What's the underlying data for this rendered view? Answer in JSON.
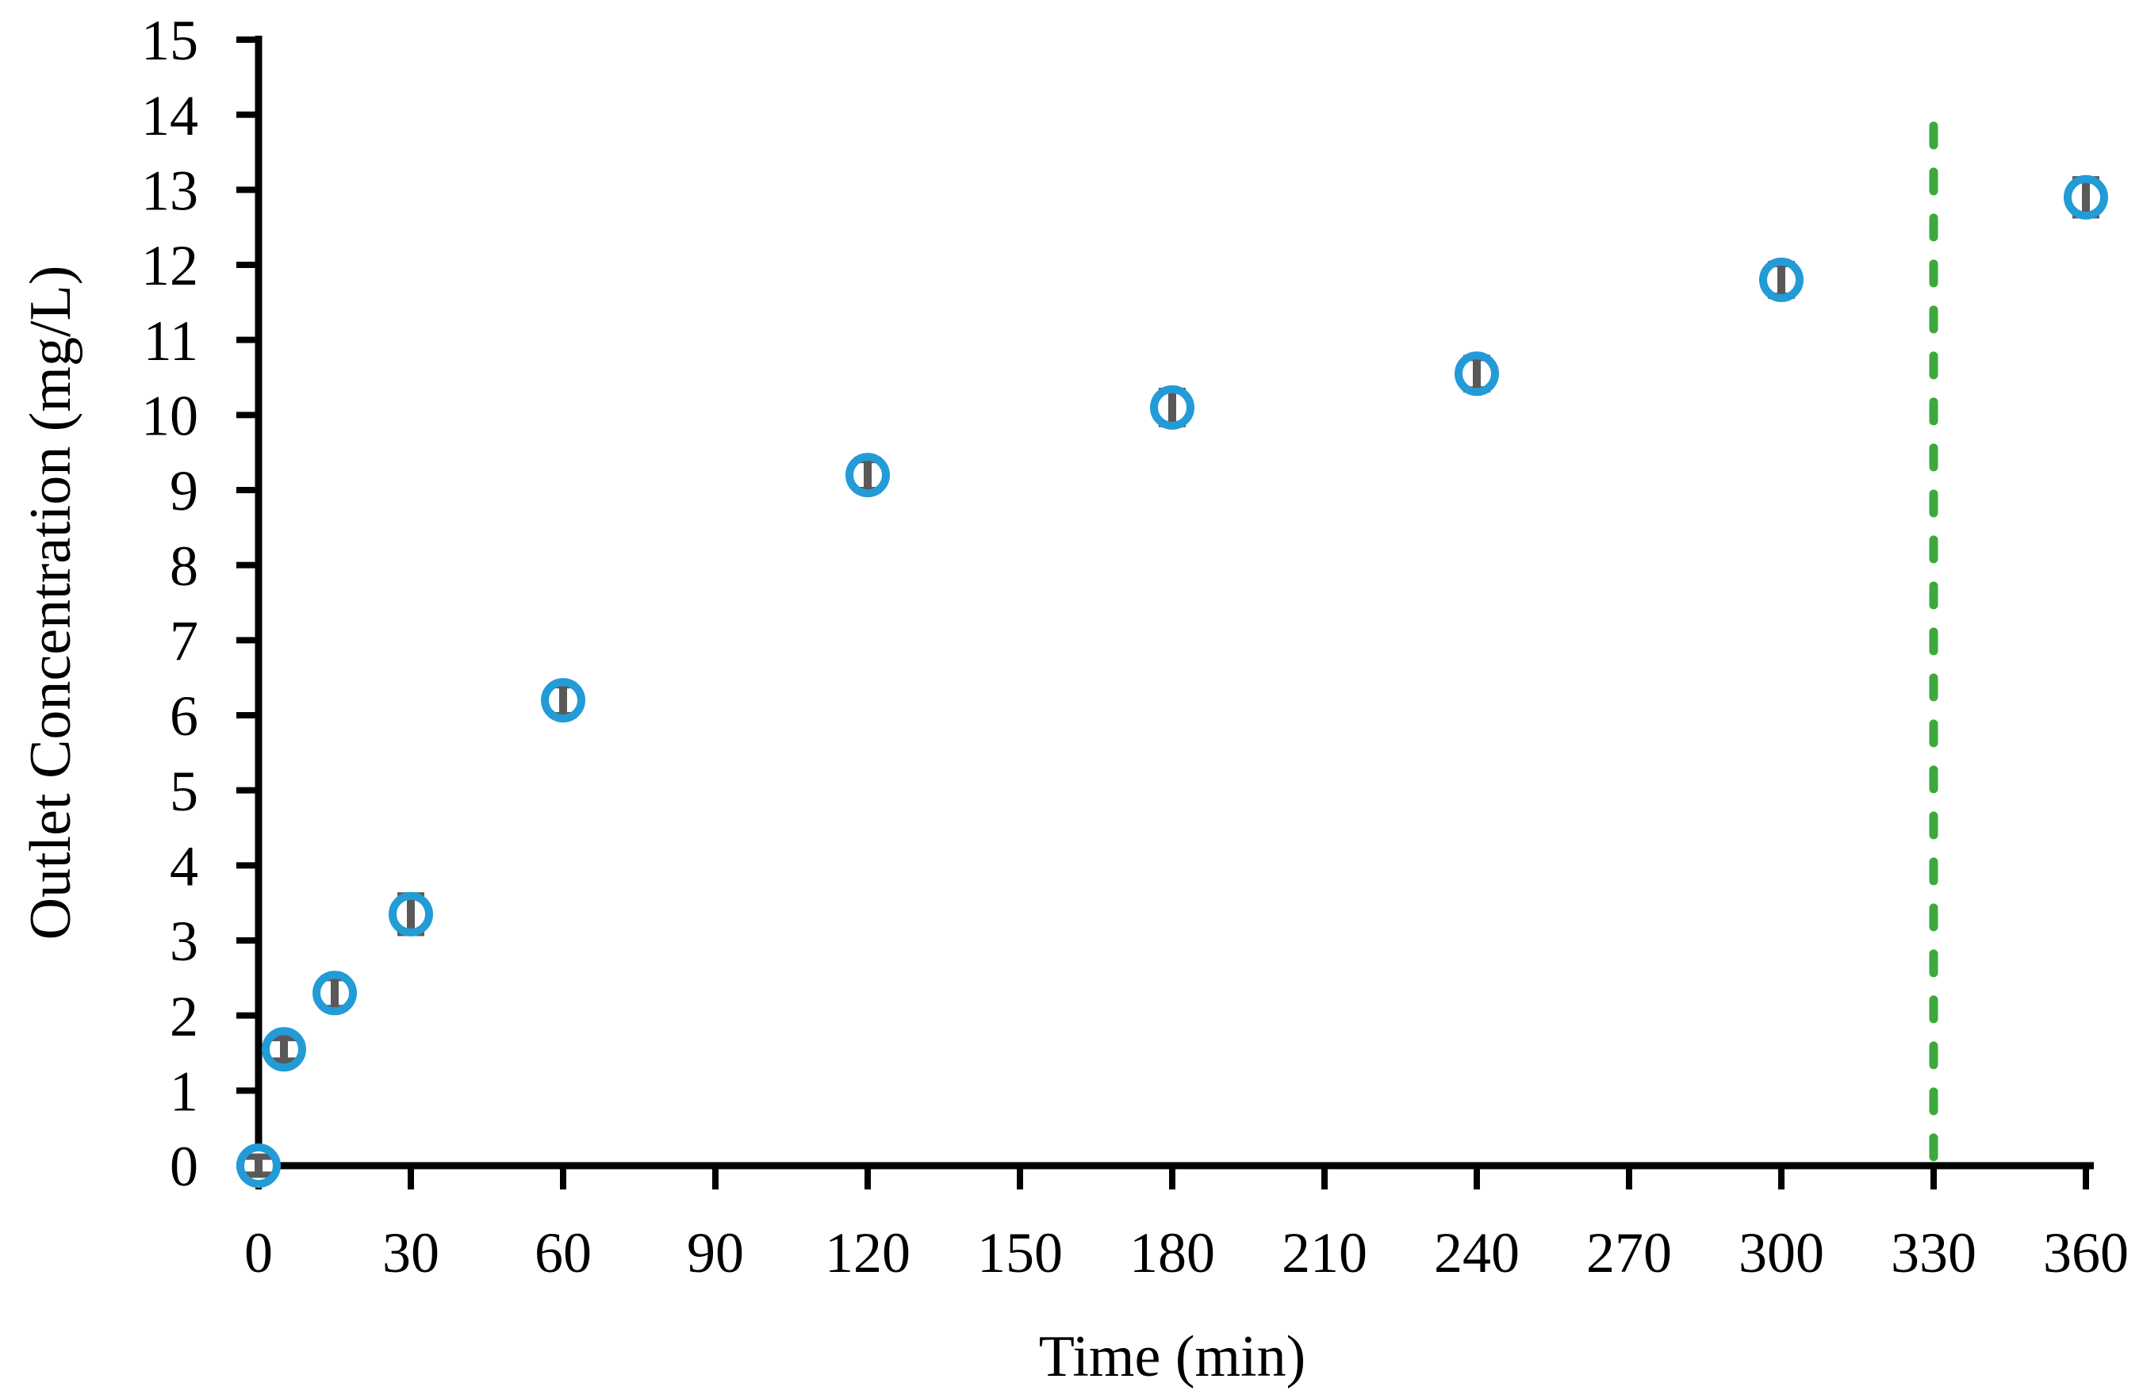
{
  "figure": {
    "background": "#ffffff",
    "axis_color": "#000000",
    "text_color": "#000000"
  },
  "chart_data": {
    "type": "scatter",
    "title": "",
    "xlabel": "Time (min)",
    "ylabel": "Outlet Concentration (mg/L)",
    "xlim": [
      0,
      360
    ],
    "ylim": [
      0,
      15
    ],
    "xticks": [
      0,
      30,
      60,
      90,
      120,
      150,
      180,
      210,
      240,
      270,
      300,
      330,
      360
    ],
    "yticks": [
      0,
      1,
      2,
      3,
      4,
      5,
      6,
      7,
      8,
      9,
      10,
      11,
      12,
      13,
      14,
      15
    ],
    "grid": false,
    "legend": null,
    "series": [
      {
        "name": "outlet-concentration",
        "marker": "open-circle",
        "marker_color": "#239bd7",
        "marker_fill": "#ffffff",
        "error_bar_color": "#595959",
        "x": [
          0,
          5,
          15,
          30,
          60,
          120,
          180,
          240,
          300,
          360
        ],
        "y": [
          0.0,
          1.55,
          2.3,
          3.35,
          6.2,
          9.2,
          10.1,
          10.55,
          11.8,
          12.9
        ],
        "yerr": [
          0.12,
          0.15,
          0.2,
          0.25,
          0.2,
          0.2,
          0.22,
          0.21,
          0.21,
          0.24
        ]
      }
    ],
    "vline": {
      "x": 330,
      "y_range": [
        0,
        13.85
      ],
      "color": "#3ca93c",
      "style": "dashed"
    }
  }
}
